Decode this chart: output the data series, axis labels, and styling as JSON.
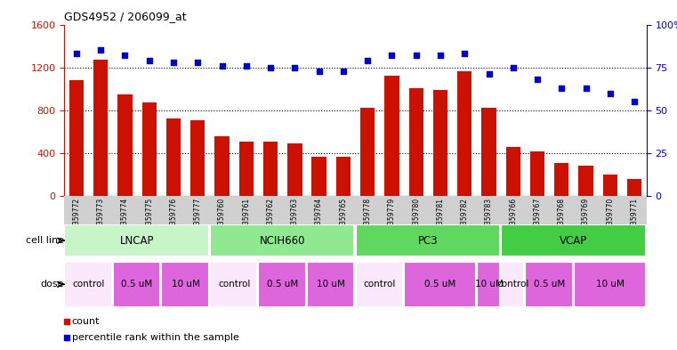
{
  "title": "GDS4952 / 206099_at",
  "samples": [
    "GSM1359772",
    "GSM1359773",
    "GSM1359774",
    "GSM1359775",
    "GSM1359776",
    "GSM1359777",
    "GSM1359760",
    "GSM1359761",
    "GSM1359762",
    "GSM1359763",
    "GSM1359764",
    "GSM1359765",
    "GSM1359778",
    "GSM1359779",
    "GSM1359780",
    "GSM1359781",
    "GSM1359782",
    "GSM1359783",
    "GSM1359766",
    "GSM1359767",
    "GSM1359768",
    "GSM1359769",
    "GSM1359770",
    "GSM1359771"
  ],
  "counts": [
    1080,
    1270,
    950,
    870,
    720,
    710,
    560,
    510,
    510,
    490,
    370,
    370,
    820,
    1120,
    1010,
    990,
    1160,
    820,
    460,
    420,
    310,
    280,
    200,
    160
  ],
  "percentiles": [
    83,
    85,
    82,
    79,
    78,
    78,
    76,
    76,
    75,
    75,
    73,
    73,
    79,
    82,
    82,
    82,
    83,
    71,
    75,
    68,
    63,
    63,
    60,
    55
  ],
  "cell_lines_data": [
    {
      "label": "LNCAP",
      "start": 0,
      "end": 6,
      "color": "#c8f5c8"
    },
    {
      "label": "NCIH660",
      "start": 6,
      "end": 12,
      "color": "#90e890"
    },
    {
      "label": "PC3",
      "start": 12,
      "end": 18,
      "color": "#60d860"
    },
    {
      "label": "VCAP",
      "start": 18,
      "end": 24,
      "color": "#44cc44"
    }
  ],
  "dose_data": [
    {
      "label": "control",
      "start": 0,
      "end": 2,
      "color": "#fce8fc"
    },
    {
      "label": "0.5 uM",
      "start": 2,
      "end": 4,
      "color": "#dd66dd"
    },
    {
      "label": "10 uM",
      "start": 4,
      "end": 6,
      "color": "#dd66dd"
    },
    {
      "label": "control",
      "start": 6,
      "end": 8,
      "color": "#fce8fc"
    },
    {
      "label": "0.5 uM",
      "start": 8,
      "end": 10,
      "color": "#dd66dd"
    },
    {
      "label": "10 uM",
      "start": 10,
      "end": 12,
      "color": "#dd66dd"
    },
    {
      "label": "control",
      "start": 12,
      "end": 14,
      "color": "#fce8fc"
    },
    {
      "label": "0.5 uM",
      "start": 14,
      "end": 17,
      "color": "#dd66dd"
    },
    {
      "label": "10 uM",
      "start": 17,
      "end": 18,
      "color": "#dd66dd"
    },
    {
      "label": "control",
      "start": 18,
      "end": 19,
      "color": "#fce8fc"
    },
    {
      "label": "0.5 uM",
      "start": 19,
      "end": 21,
      "color": "#dd66dd"
    },
    {
      "label": "10 uM",
      "start": 21,
      "end": 24,
      "color": "#dd66dd"
    }
  ],
  "bar_color": "#cc1100",
  "dot_color": "#0000cc",
  "left_ylim": [
    0,
    1600
  ],
  "left_yticks": [
    0,
    400,
    800,
    1200,
    1600
  ],
  "right_ylim": [
    0,
    100
  ],
  "right_yticks": [
    0,
    25,
    50,
    75,
    100
  ],
  "bg_color": "#ffffff",
  "tick_bg_color": "#d0d0d0"
}
